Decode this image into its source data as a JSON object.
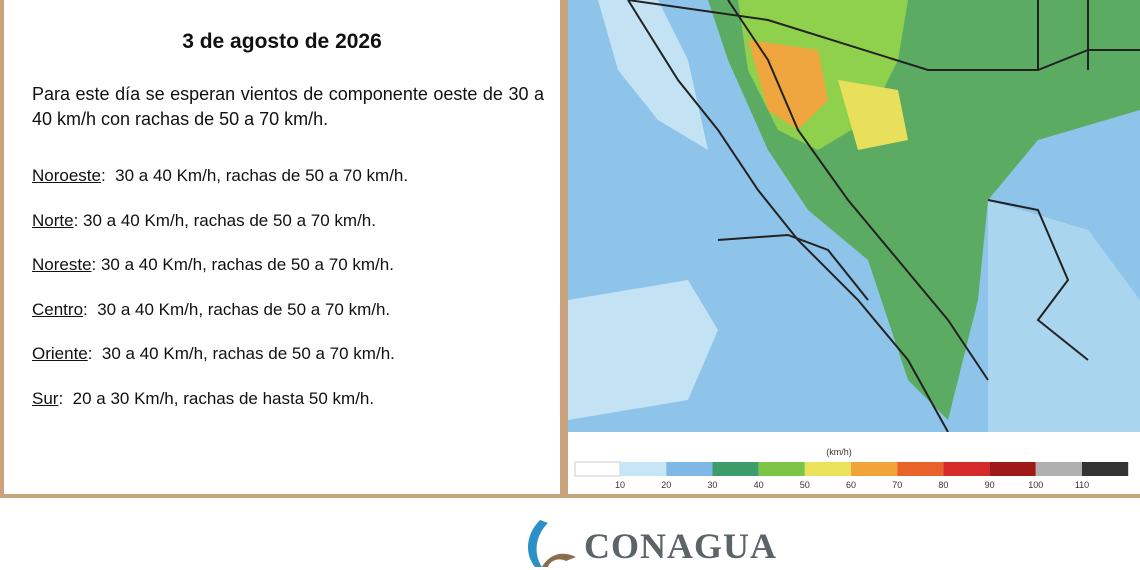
{
  "forecast": {
    "date": "3 de agosto de 2026",
    "intro": "Para este día se esperan vientos de componente oeste de 30 a 40 km/h con rachas de 50 a 70 km/h.",
    "regions": [
      {
        "name": "Noroeste",
        "text": ":  30 a 40 Km/h, rachas de 50 a 70 km/h."
      },
      {
        "name": "Norte",
        "text": ": 30 a 40 Km/h, rachas de 50 a 70 km/h."
      },
      {
        "name": "Noreste",
        "text": ": 30 a 40 Km/h, rachas de 50 a 70 km/h."
      },
      {
        "name": "Centro",
        "text": ":  30 a 40 Km/h, rachas de 50 a 70 km/h."
      },
      {
        "name": "Oriente",
        "text": ":  30 a 40 Km/h, rachas de 50 a 70 km/h."
      },
      {
        "name": "Sur",
        "text": ":  20 a 30 Km/h, rachas de hasta 50 km/h."
      }
    ]
  },
  "legend": {
    "unit": "(km/h)",
    "ticks": [
      10,
      20,
      30,
      40,
      50,
      60,
      70,
      80,
      90,
      100,
      110
    ],
    "colors": [
      "#ffffff",
      "#c6e6f6",
      "#7fb8e6",
      "#3e9b6a",
      "#7cc547",
      "#e8e35a",
      "#f2a33a",
      "#e8622a",
      "#d42a2a",
      "#a01818",
      "#b0b0b0",
      "#333333"
    ]
  },
  "footer": {
    "logo": "CONAGUA"
  }
}
